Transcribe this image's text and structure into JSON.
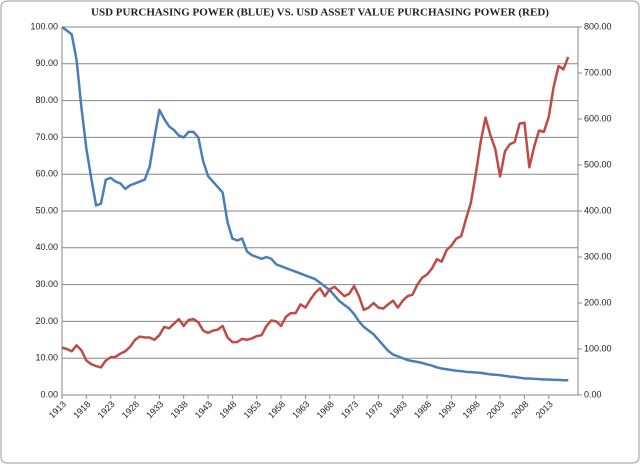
{
  "chart_data": {
    "type": "line",
    "title": "USD PURCHASING POWER (BLUE) VS. USD ASSET VALUE PURCHASING POWER (RED)",
    "x": [
      1913,
      1914,
      1915,
      1916,
      1917,
      1918,
      1919,
      1920,
      1921,
      1922,
      1923,
      1924,
      1925,
      1926,
      1927,
      1928,
      1929,
      1930,
      1931,
      1932,
      1933,
      1934,
      1935,
      1936,
      1937,
      1938,
      1939,
      1940,
      1941,
      1942,
      1943,
      1944,
      1945,
      1946,
      1947,
      1948,
      1949,
      1950,
      1951,
      1952,
      1953,
      1954,
      1955,
      1956,
      1957,
      1958,
      1959,
      1960,
      1961,
      1962,
      1963,
      1964,
      1965,
      1966,
      1967,
      1968,
      1969,
      1970,
      1971,
      1972,
      1973,
      1974,
      1975,
      1976,
      1977,
      1978,
      1979,
      1980,
      1981,
      1982,
      1983,
      1984,
      1985,
      1986,
      1987,
      1988,
      1989,
      1990,
      1991,
      1992,
      1993,
      1994,
      1995,
      1996,
      1997,
      1998,
      1999,
      2000,
      2001,
      2002,
      2003,
      2004,
      2005,
      2006,
      2007,
      2008,
      2009,
      2010,
      2011,
      2012,
      2013,
      2014,
      2015,
      2016,
      2017
    ],
    "series": [
      {
        "name": "USD purchasing power",
        "color": "#4a7ebb",
        "axis": "y",
        "values": [
          100,
          99,
          98,
          91,
          78,
          67,
          59,
          51.5,
          52,
          58.5,
          59,
          58,
          57.5,
          56,
          57,
          57.5,
          58,
          58.5,
          62,
          70,
          77.5,
          75,
          73,
          72,
          70.5,
          70,
          71.5,
          71.5,
          70,
          63.5,
          59.5,
          58,
          56.5,
          55,
          47,
          42.5,
          42,
          42.5,
          39,
          38,
          37.5,
          37,
          37.5,
          37,
          35.5,
          35,
          34.5,
          34,
          33.5,
          33,
          32.5,
          32,
          31.5,
          30.5,
          29.5,
          28.5,
          27,
          25.5,
          24.5,
          23.5,
          22,
          20,
          18.5,
          17.5,
          16.5,
          15,
          13.5,
          12,
          11,
          10.5,
          10,
          9.5,
          9.2,
          9,
          8.7,
          8.3,
          8,
          7.5,
          7.2,
          7,
          6.8,
          6.6,
          6.5,
          6.3,
          6.2,
          6.1,
          6,
          5.8,
          5.6,
          5.5,
          5.4,
          5.2,
          5,
          4.9,
          4.7,
          4.5,
          4.5,
          4.4,
          4.3,
          4.2,
          4.2,
          4.1,
          4.1,
          4,
          4
        ]
      },
      {
        "name": "USD asset value purchasing power",
        "color": "#be4b48",
        "axis": "y2",
        "values": [
          103,
          100,
          95,
          108,
          97,
          75,
          67,
          63,
          60,
          75,
          82,
          83,
          90,
          95,
          105,
          120,
          127,
          125,
          125,
          120,
          130,
          148,
          145,
          155,
          165,
          150,
          163,
          165,
          158,
          140,
          135,
          140,
          142,
          150,
          125,
          115,
          115,
          122,
          120,
          123,
          128,
          130,
          150,
          162,
          160,
          150,
          170,
          178,
          178,
          197,
          190,
          207,
          222,
          232,
          215,
          230,
          235,
          225,
          215,
          220,
          237,
          215,
          185,
          190,
          200,
          190,
          188,
          197,
          205,
          190,
          205,
          215,
          218,
          240,
          255,
          262,
          275,
          295,
          290,
          315,
          325,
          340,
          345,
          383,
          418,
          480,
          550,
          603,
          565,
          535,
          475,
          530,
          545,
          550,
          590,
          592,
          495,
          540,
          575,
          572,
          605,
          670,
          715,
          708,
          735
        ]
      }
    ],
    "xlim": [
      1913,
      2019
    ],
    "xticks": [
      1913,
      1918,
      1923,
      1928,
      1933,
      1938,
      1943,
      1948,
      1953,
      1958,
      1963,
      1968,
      1973,
      1978,
      1983,
      1988,
      1993,
      1998,
      2003,
      2008,
      2013
    ],
    "ylim": [
      0,
      100
    ],
    "yticks": [
      {
        "value": 0,
        "label": "0.00"
      },
      {
        "value": 10,
        "label": "10.00"
      },
      {
        "value": 20,
        "label": "20.00"
      },
      {
        "value": 30,
        "label": "30.00"
      },
      {
        "value": 40,
        "label": "40.00"
      },
      {
        "value": 50,
        "label": "50.00"
      },
      {
        "value": 60,
        "label": "60.00"
      },
      {
        "value": 70,
        "label": "70.00"
      },
      {
        "value": 80,
        "label": "80.00"
      },
      {
        "value": 90,
        "label": "90.00"
      },
      {
        "value": 100,
        "label": "100.00"
      }
    ],
    "y2lim": [
      0,
      800
    ],
    "y2ticks": [
      {
        "value": 0,
        "label": "0.00"
      },
      {
        "value": 100,
        "label": "100.00"
      },
      {
        "value": 200,
        "label": "200.00"
      },
      {
        "value": 300,
        "label": "300.00"
      },
      {
        "value": 400,
        "label": "400.00"
      },
      {
        "value": 500,
        "label": "500.00"
      },
      {
        "value": 600,
        "label": "600.00"
      },
      {
        "value": 700,
        "label": "700.00"
      },
      {
        "value": 800,
        "label": "800.00"
      }
    ],
    "grid": true
  }
}
